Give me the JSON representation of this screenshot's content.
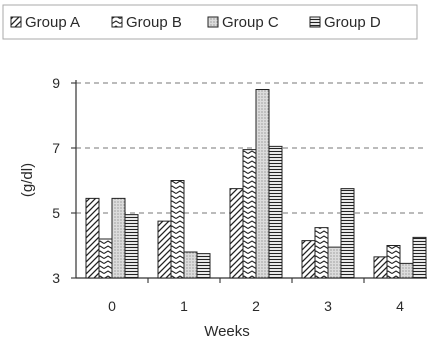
{
  "chart_data": {
    "type": "bar",
    "title": "",
    "xlabel": "Weeks",
    "ylabel": "(g/dl)",
    "categories": [
      "0",
      "1",
      "2",
      "3",
      "4"
    ],
    "ylim": [
      3,
      9
    ],
    "yticks": [
      3,
      5,
      7,
      9
    ],
    "grid": "dashed horizontal",
    "legend_position": "top",
    "series": [
      {
        "name": "Group A",
        "pattern": "diagonal-hatch",
        "values": [
          5.45,
          4.75,
          5.75,
          4.15,
          3.65
        ]
      },
      {
        "name": "Group B",
        "pattern": "zigzag",
        "values": [
          4.2,
          6.0,
          6.95,
          4.55,
          4.0
        ]
      },
      {
        "name": "Group C",
        "pattern": "dotted",
        "values": [
          5.45,
          3.8,
          8.8,
          3.95,
          3.45
        ]
      },
      {
        "name": "Group D",
        "pattern": "horizontal-lines",
        "values": [
          4.95,
          3.75,
          7.05,
          5.75,
          4.25
        ]
      }
    ]
  }
}
